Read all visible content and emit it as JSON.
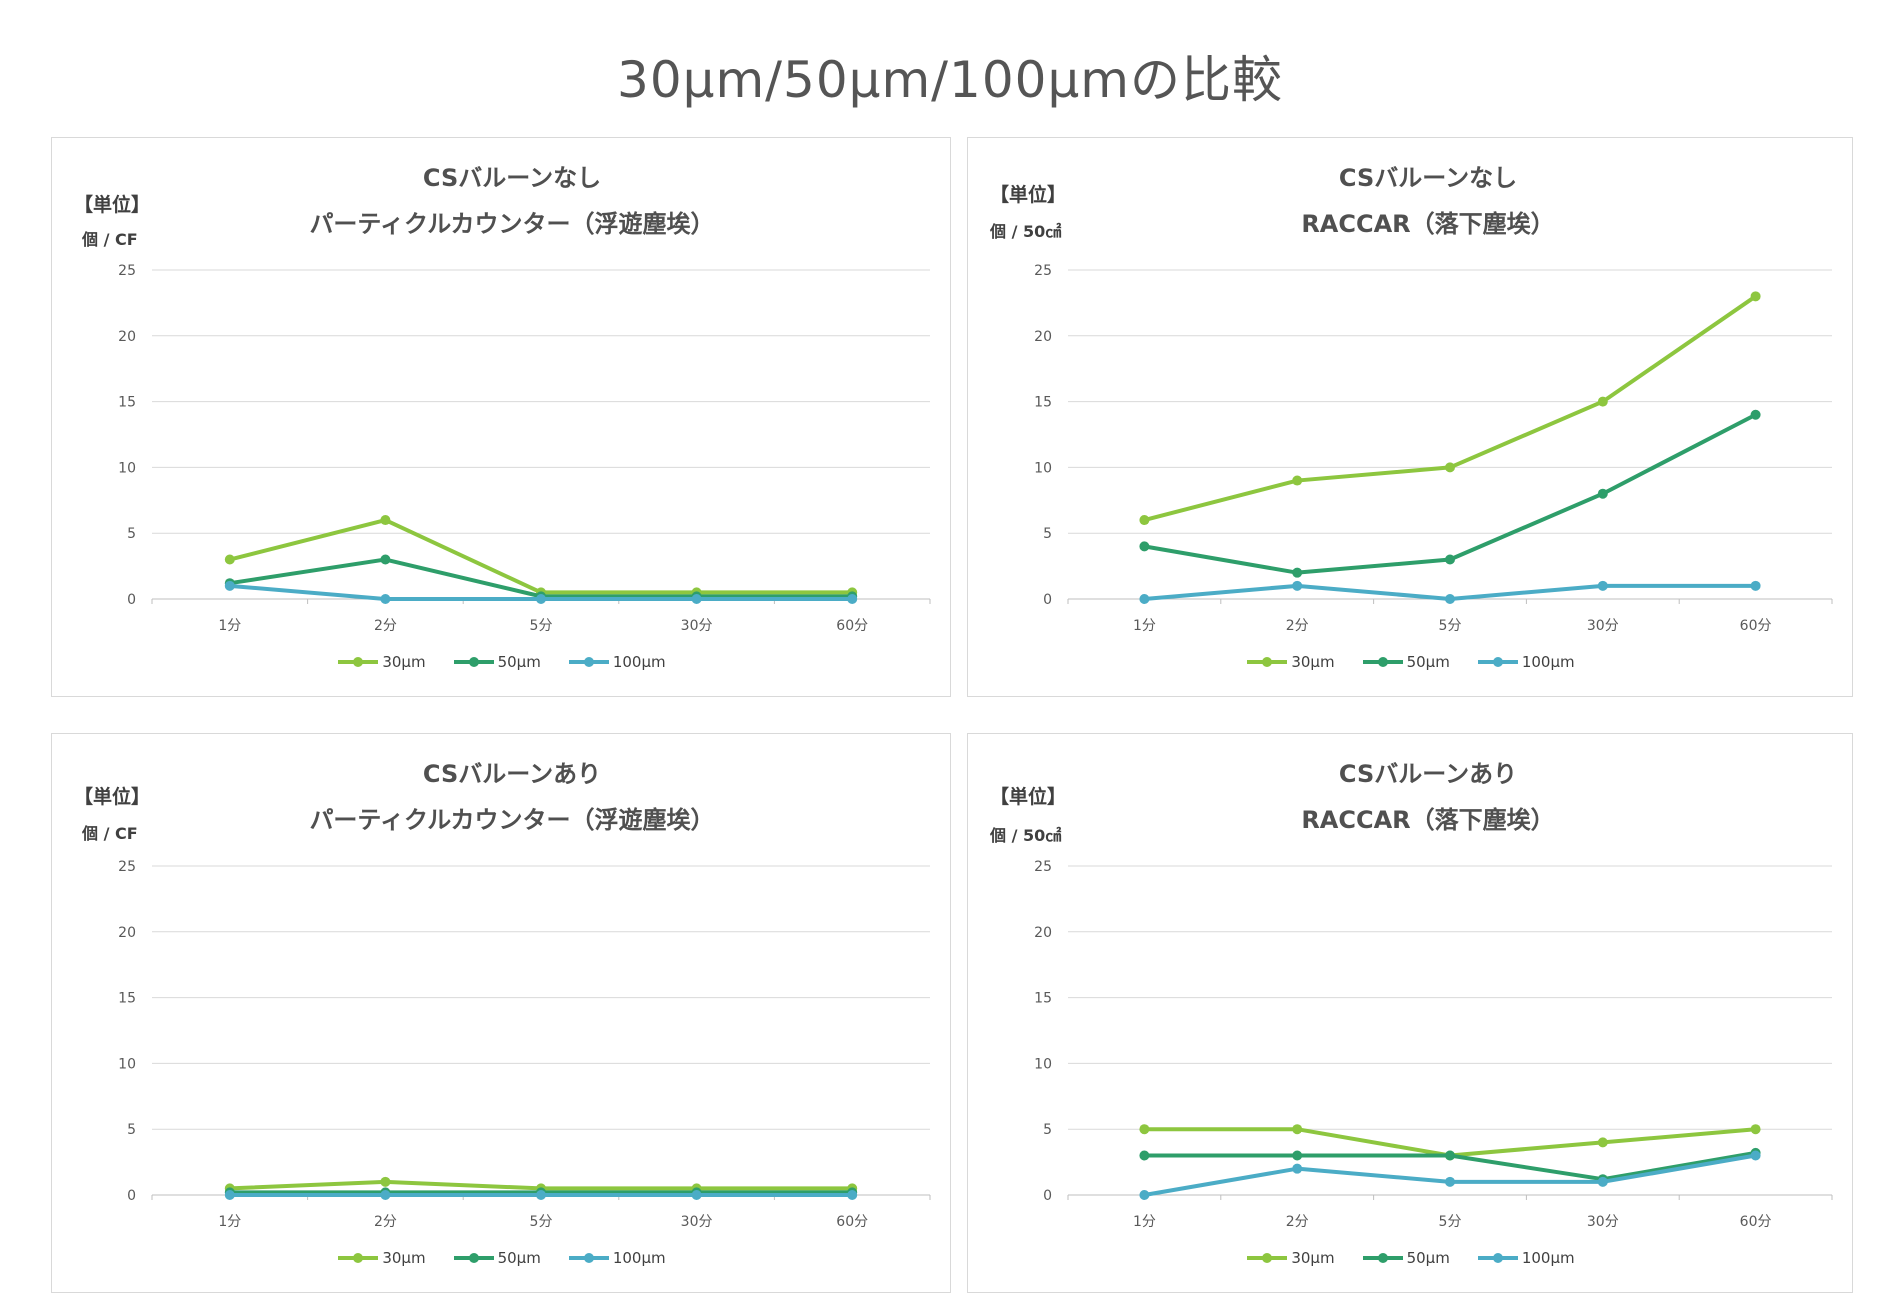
{
  "title": "30μm/50μm/100μmの比較",
  "colors": {
    "30μm": "#8dc63f",
    "50μm": "#2e9e6a",
    "100μm": "#4bacc6"
  },
  "charts": [
    {
      "title_line1": "CSバルーンなし",
      "title_line2": "パーティクルカウンター（浮遊塵埃）",
      "unit_header": "【単位】",
      "unit": "個 / CF",
      "legend": [
        "30μm",
        "50μm",
        "100μm"
      ]
    },
    {
      "title_line1": "CSバルーンなし",
      "title_line2": "RACCAR（落下塵埃）",
      "unit_header": "【単位】",
      "unit": "個 / 50㎠",
      "legend": [
        "30μm",
        "50μm",
        "100μm"
      ]
    },
    {
      "title_line1": "CSバルーンあり",
      "title_line2": "パーティクルカウンター（浮遊塵埃）",
      "unit_header": "【単位】",
      "unit": "個 / CF",
      "legend": [
        "30μm",
        "50μm",
        "100μm"
      ]
    },
    {
      "title_line1": "CSバルーンあり",
      "title_line2": "RACCAR（落下塵埃）",
      "unit_header": "【単位】",
      "unit": "個 / 50㎠",
      "legend": [
        "30μm",
        "50μm",
        "100μm"
      ]
    }
  ],
  "chart_data": [
    {
      "type": "line",
      "title": "CSバルーンなし パーティクルカウンター（浮遊塵埃）",
      "ylabel": "個 / CF",
      "categories": [
        "1分",
        "2分",
        "5分",
        "30分",
        "60分"
      ],
      "yticks": [
        0,
        5,
        10,
        15,
        20,
        25
      ],
      "ylim": [
        0,
        25
      ],
      "series": [
        {
          "name": "30μm",
          "values": [
            3,
            6,
            0.5,
            0.5,
            0.5
          ]
        },
        {
          "name": "50μm",
          "values": [
            1.2,
            3,
            0.2,
            0.2,
            0.2
          ]
        },
        {
          "name": "100μm",
          "values": [
            1,
            0,
            0,
            0,
            0
          ]
        }
      ]
    },
    {
      "type": "line",
      "title": "CSバルーンなし RACCAR（落下塵埃）",
      "ylabel": "個 / 50㎠",
      "categories": [
        "1分",
        "2分",
        "5分",
        "30分",
        "60分"
      ],
      "yticks": [
        0,
        5,
        10,
        15,
        20,
        25
      ],
      "ylim": [
        0,
        25
      ],
      "series": [
        {
          "name": "30μm",
          "values": [
            6,
            9,
            10,
            15,
            23
          ]
        },
        {
          "name": "50μm",
          "values": [
            4,
            2,
            3,
            8,
            14
          ]
        },
        {
          "name": "100μm",
          "values": [
            0,
            1,
            0,
            1,
            1
          ]
        }
      ]
    },
    {
      "type": "line",
      "title": "CSバルーンあり パーティクルカウンター（浮遊塵埃）",
      "ylabel": "個 / CF",
      "categories": [
        "1分",
        "2分",
        "5分",
        "30分",
        "60分"
      ],
      "yticks": [
        0,
        5,
        10,
        15,
        20,
        25
      ],
      "ylim": [
        0,
        25
      ],
      "series": [
        {
          "name": "30μm",
          "values": [
            0.5,
            1,
            0.5,
            0.5,
            0.5
          ]
        },
        {
          "name": "50μm",
          "values": [
            0.2,
            0.2,
            0.2,
            0.2,
            0.2
          ]
        },
        {
          "name": "100μm",
          "values": [
            0,
            0,
            0,
            0,
            0
          ]
        }
      ]
    },
    {
      "type": "line",
      "title": "CSバルーンあり RACCAR（落下塵埃）",
      "ylabel": "個 / 50㎠",
      "categories": [
        "1分",
        "2分",
        "5分",
        "30分",
        "60分"
      ],
      "yticks": [
        0,
        5,
        10,
        15,
        20,
        25
      ],
      "ylim": [
        0,
        25
      ],
      "series": [
        {
          "name": "30μm",
          "values": [
            5,
            5,
            3,
            4,
            5
          ]
        },
        {
          "name": "50μm",
          "values": [
            3,
            3,
            3,
            1.2,
            3.2
          ]
        },
        {
          "name": "100μm",
          "values": [
            0,
            2,
            1,
            1,
            3
          ]
        }
      ]
    }
  ]
}
